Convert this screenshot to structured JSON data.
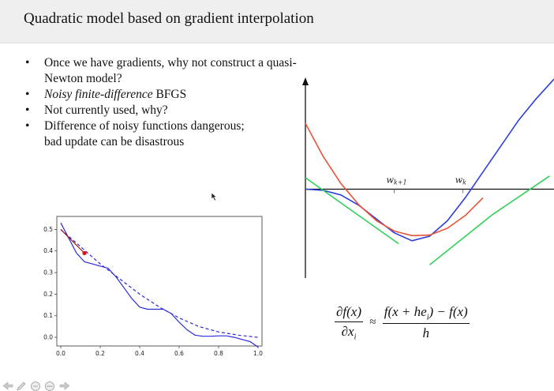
{
  "slide": {
    "title": "Quadratic model based on gradient interpolation",
    "bullets": [
      {
        "dot": "•",
        "text": " Once we have gradients, why not construct a quasi-Newton model?"
      },
      {
        "dot": "•",
        "italic": "Noisy finite-difference",
        "text": " BFGS"
      },
      {
        "dot": "•",
        "text": " Not currently used, why?"
      },
      {
        "dot": "•",
        "text": " Difference of noisy functions dangerous; bad update can be disastrous"
      }
    ]
  },
  "chart_data": [
    {
      "type": "line",
      "title": "",
      "xlabel": "",
      "ylabel": "",
      "xlim": [
        -0.02,
        1.02
      ],
      "ylim": [
        -0.04,
        0.56
      ],
      "xticks": [
        "0.0",
        "0.2",
        "0.4",
        "0.6",
        "0.8",
        "1.0"
      ],
      "yticks": [
        "0.0",
        "0.1",
        "0.2",
        "0.3",
        "0.4",
        "0.5"
      ],
      "grid": false,
      "series": [
        {
          "style": "solid",
          "color": "#2b2bd6",
          "x": [
            0.0,
            0.04,
            0.08,
            0.12,
            0.16,
            0.2,
            0.24,
            0.28,
            0.32,
            0.36,
            0.4,
            0.44,
            0.48,
            0.52,
            0.56,
            0.6,
            0.64,
            0.68,
            0.72,
            0.76,
            0.8,
            0.84,
            0.88,
            0.92,
            0.96,
            1.0
          ],
          "y": [
            0.53,
            0.46,
            0.39,
            0.35,
            0.34,
            0.33,
            0.32,
            0.28,
            0.23,
            0.18,
            0.14,
            0.13,
            0.13,
            0.13,
            0.11,
            0.07,
            0.035,
            0.01,
            0.005,
            0.005,
            0.007,
            0.007,
            0.0,
            -0.01,
            -0.02,
            -0.045
          ]
        },
        {
          "style": "dashed",
          "color": "#2b2bd6",
          "x": [
            0.0,
            0.1,
            0.2,
            0.3,
            0.4,
            0.5,
            0.6,
            0.7,
            0.8,
            0.9,
            1.0
          ],
          "y": [
            0.5,
            0.42,
            0.34,
            0.27,
            0.2,
            0.14,
            0.09,
            0.05,
            0.025,
            0.01,
            0.0
          ]
        },
        {
          "style": "solid",
          "color": "#a01818",
          "x": [
            0.0,
            0.12
          ],
          "y": [
            0.5,
            0.39
          ]
        }
      ],
      "points": [
        {
          "x": 0.12,
          "y": 0.39,
          "color": "#e01010"
        }
      ]
    },
    {
      "type": "line",
      "title": "",
      "xlabel": "",
      "ylabel": "",
      "xlim": [
        -1.0,
        4.6
      ],
      "ylim": [
        -1.55,
        1.95
      ],
      "tick_labels": [
        {
          "text": "w",
          "sub": "k+1",
          "x": 1.0
        },
        {
          "text": "w",
          "sub": "k",
          "x": 2.55
        }
      ],
      "series": [
        {
          "name": "",
          "color": "#2a3fd8",
          "x": [
            -1.0,
            -0.6,
            -0.2,
            0.2,
            0.6,
            1.0,
            1.4,
            1.8,
            2.2,
            2.6,
            3.0,
            3.4,
            3.8,
            4.2,
            4.6
          ],
          "y": [
            0.0,
            -0.02,
            -0.1,
            -0.28,
            -0.52,
            -0.76,
            -0.9,
            -0.82,
            -0.55,
            -0.15,
            0.3,
            0.75,
            1.2,
            1.58,
            1.92
          ]
        },
        {
          "name": "",
          "color": "#e8523a",
          "x": [
            -1.0,
            -0.6,
            -0.2,
            0.2,
            0.6,
            1.0,
            1.4,
            1.8,
            2.2,
            2.6,
            3.0
          ],
          "y": [
            1.15,
            0.57,
            0.1,
            -0.27,
            -0.55,
            -0.73,
            -0.81,
            -0.8,
            -0.68,
            -0.46,
            -0.15
          ]
        },
        {
          "name": "",
          "color": "#2fd05a",
          "x": [
            -1.0,
            0.0,
            1.1
          ],
          "y": [
            0.2,
            -0.35,
            -0.95
          ]
        },
        {
          "name": "",
          "color": "#2fd05a",
          "x": [
            1.8,
            3.2,
            4.5
          ],
          "y": [
            -1.32,
            -0.45,
            0.23
          ]
        }
      ]
    }
  ],
  "formula": {
    "numerator": "∂f(x)",
    "denominator": "∂x",
    "denominator_sub": "i",
    "approx": "≈",
    "rhs_numerator": "f(x + he",
    "rhs_numerator_sub": "i",
    "rhs_numerator_tail": ") − f(x)",
    "rhs_denominator": "h"
  },
  "toolbar": {
    "icons": [
      "back-arrow-icon",
      "pen-icon",
      "slides-icon",
      "zoom-icon",
      "forward-arrow-icon"
    ]
  }
}
